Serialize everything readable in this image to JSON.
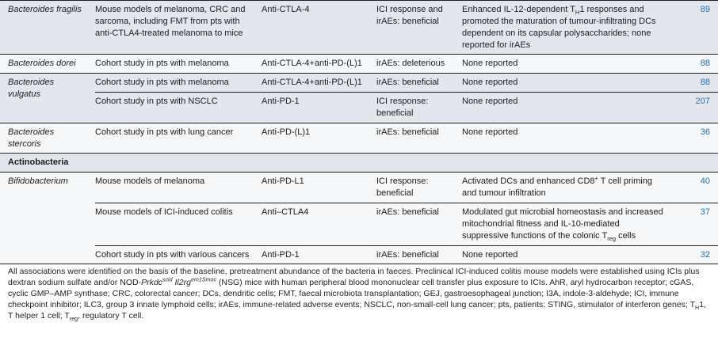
{
  "colors": {
    "row_shaded": "#e3e7ed",
    "row_light": "#f6f7f9",
    "rule": "#222222",
    "reference_blue": "#2570af",
    "text": "#1c1c1c"
  },
  "table": {
    "groups": [
      {
        "species": "Bacteroides fragilis",
        "rows": [
          {
            "study": "Mouse models of melanoma, CRC and sarcoma, including FMT from pts with anti-CTLA4-treated melanoma to mice",
            "treatment": "Anti-CTLA-4",
            "outcome": "ICI response and irAEs: beneficial",
            "effects_rich": [
              {
                "t": "Enhanced IL-12-dependent T"
              },
              {
                "t": "H",
                "s": "sub"
              },
              {
                "t": "1 responses and promoted the maturation of tumour-infiltrating DCs dependent on its capsular polysaccharides; none reported for irAEs"
              }
            ],
            "ref": "89"
          }
        ]
      },
      {
        "species": "Bacteroides dorei",
        "rows": [
          {
            "study": "Cohort study in pts with melanoma",
            "treatment": "Anti-CTLA-4+anti-PD-(L)1",
            "outcome": "irAEs: deleterious",
            "effects": "None reported",
            "ref": "88"
          }
        ]
      },
      {
        "species": "Bacteroides vulgatus",
        "rows": [
          {
            "study": "Cohort study in pts with melanoma",
            "treatment": "Anti-CTLA-4+anti-PD-(L)1",
            "outcome": "irAEs: beneficial",
            "effects": "None reported",
            "ref": "88"
          },
          {
            "study": "Cohort study in pts with NSCLC",
            "treatment": "Anti-PD-1",
            "outcome": "ICI response: beneficial",
            "effects": "None reported",
            "ref": "207"
          }
        ]
      },
      {
        "species": "Bacteroides stercoris",
        "rows": [
          {
            "study": "Cohort study in pts with lung cancer",
            "treatment": "Anti-PD-(L)1",
            "outcome": "irAEs: beneficial",
            "effects": "None reported",
            "ref": "36"
          }
        ]
      },
      {
        "section": "Actinobacteria"
      },
      {
        "species": "Bifidobacterium",
        "rows": [
          {
            "study": "Mouse models of melanoma",
            "treatment": "Anti-PD-L1",
            "outcome": "ICI response: beneficial",
            "effects_rich": [
              {
                "t": "Activated DCs and enhanced CD8"
              },
              {
                "t": "+",
                "s": "sup"
              },
              {
                "t": " T cell priming and tumour infiltration"
              }
            ],
            "ref": "40"
          },
          {
            "study": "Mouse models of ICI-induced colitis",
            "treatment": "Anti–CTLA4",
            "outcome": "irAEs: beneficial",
            "effects_rich": [
              {
                "t": "Modulated gut microbial homeostasis and increased mitochondrial fitness and IL-10-mediated suppressive functions of the colonic T"
              },
              {
                "t": "reg",
                "s": "sub"
              },
              {
                "t": " cells"
              }
            ],
            "ref": "37"
          },
          {
            "study": "Cohort study in pts with various cancers",
            "treatment": "Anti-PD-1",
            "outcome": "irAEs: beneficial",
            "effects": "None reported",
            "ref": "32"
          }
        ]
      }
    ]
  },
  "footnote_rich": [
    {
      "t": "All associations were identified on the basis of the baseline, pretreatment abundance of the bacteria in faeces. Preclinical ICI-induced colitis mouse models were established using ICIs plus dextran sodium sulfate and/or NOD-"
    },
    {
      "t": "Prkdc",
      "s": "i"
    },
    {
      "t": "scid",
      "s": "isup"
    },
    {
      "t": " Il2rg",
      "s": "i"
    },
    {
      "t": "em1Smoc",
      "s": "isup"
    },
    {
      "t": " (NSG) mice with human peripheral blood mononuclear cell transfer plus exposure to ICIs. AhR, aryl hydrocarbon receptor; cGAS, cyclic GMP–AMP synthase; CRC, colorectal cancer; DCs, dendritic cells; FMT, faecal microbiota transplantation; GEJ, gastroesophageal junction; I3A, indole-3-aldehyde; ICI, immune checkpoint inhibitor; ILC3, group 3 innate lymphoid cells; irAEs, immune-related adverse events; NSCLC, non-small-cell lung cancer; pts, patients; STING, stimulator of interferon genes; T"
    },
    {
      "t": "H",
      "s": "sub"
    },
    {
      "t": "1, T helper 1 cell; T"
    },
    {
      "t": "reg",
      "s": "sub"
    },
    {
      "t": ", regulatory T cell."
    }
  ]
}
